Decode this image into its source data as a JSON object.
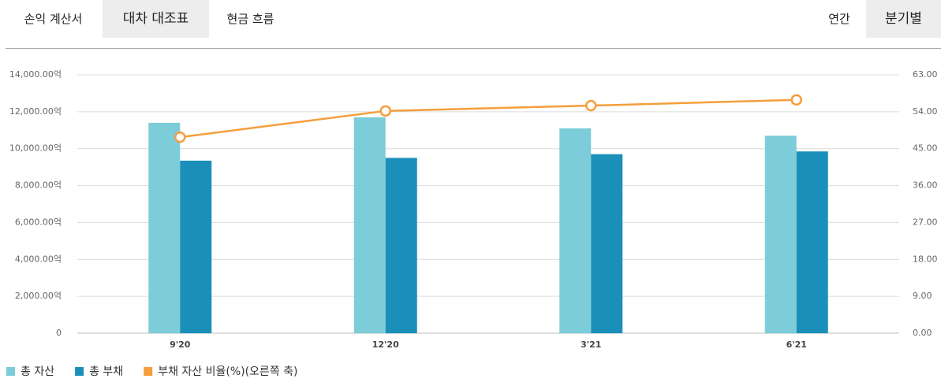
{
  "tabs": [
    "손익 계산서",
    "대차 대조표",
    "현금 흐름"
  ],
  "periods": [
    "연간",
    "분기별"
  ],
  "chart_data": {
    "type": "bar",
    "categories": [
      "9'20",
      "12'20",
      "3'21",
      "6'21"
    ],
    "series": [
      {
        "name": "총 자산",
        "color": "#7ccdd9",
        "values": [
          11400,
          11700,
          11100,
          10700
        ]
      },
      {
        "name": "총 부채",
        "color": "#1a8fba",
        "values": [
          9350,
          9500,
          9700,
          9850
        ]
      },
      {
        "name": "부채 자산 비율(%)(오른쪽 축)",
        "color": "#f59e3b",
        "type": "line",
        "axis": "y2",
        "values": [
          47.8,
          54.2,
          55.5,
          56.9
        ]
      }
    ],
    "ylim": [
      0,
      14000
    ],
    "yticks": [
      0,
      {
        "value": 2000,
        "label": "2,000.00억"
      },
      {
        "value": 4000,
        "label": "4,000.00억"
      },
      {
        "value": 6000,
        "label": "6,000.00억"
      },
      {
        "value": 8000,
        "label": "8,000.00억"
      },
      {
        "value": 10000,
        "label": "10,000.00억"
      },
      {
        "value": 12000,
        "label": "12,000.00억"
      },
      {
        "value": 14000,
        "label": "14,000.00억"
      }
    ],
    "y2lim": [
      0,
      63
    ],
    "y2ticks": [
      {
        "value": 0,
        "label": "0.00"
      },
      {
        "value": 9,
        "label": "9.00"
      },
      {
        "value": 18,
        "label": "18.00"
      },
      {
        "value": 27,
        "label": "27.00"
      },
      {
        "value": 36,
        "label": "36.00"
      },
      {
        "value": 45,
        "label": "45.00"
      },
      {
        "value": 54,
        "label": "54.00"
      },
      {
        "value": 63,
        "label": "63.00"
      }
    ],
    "grid": true
  }
}
